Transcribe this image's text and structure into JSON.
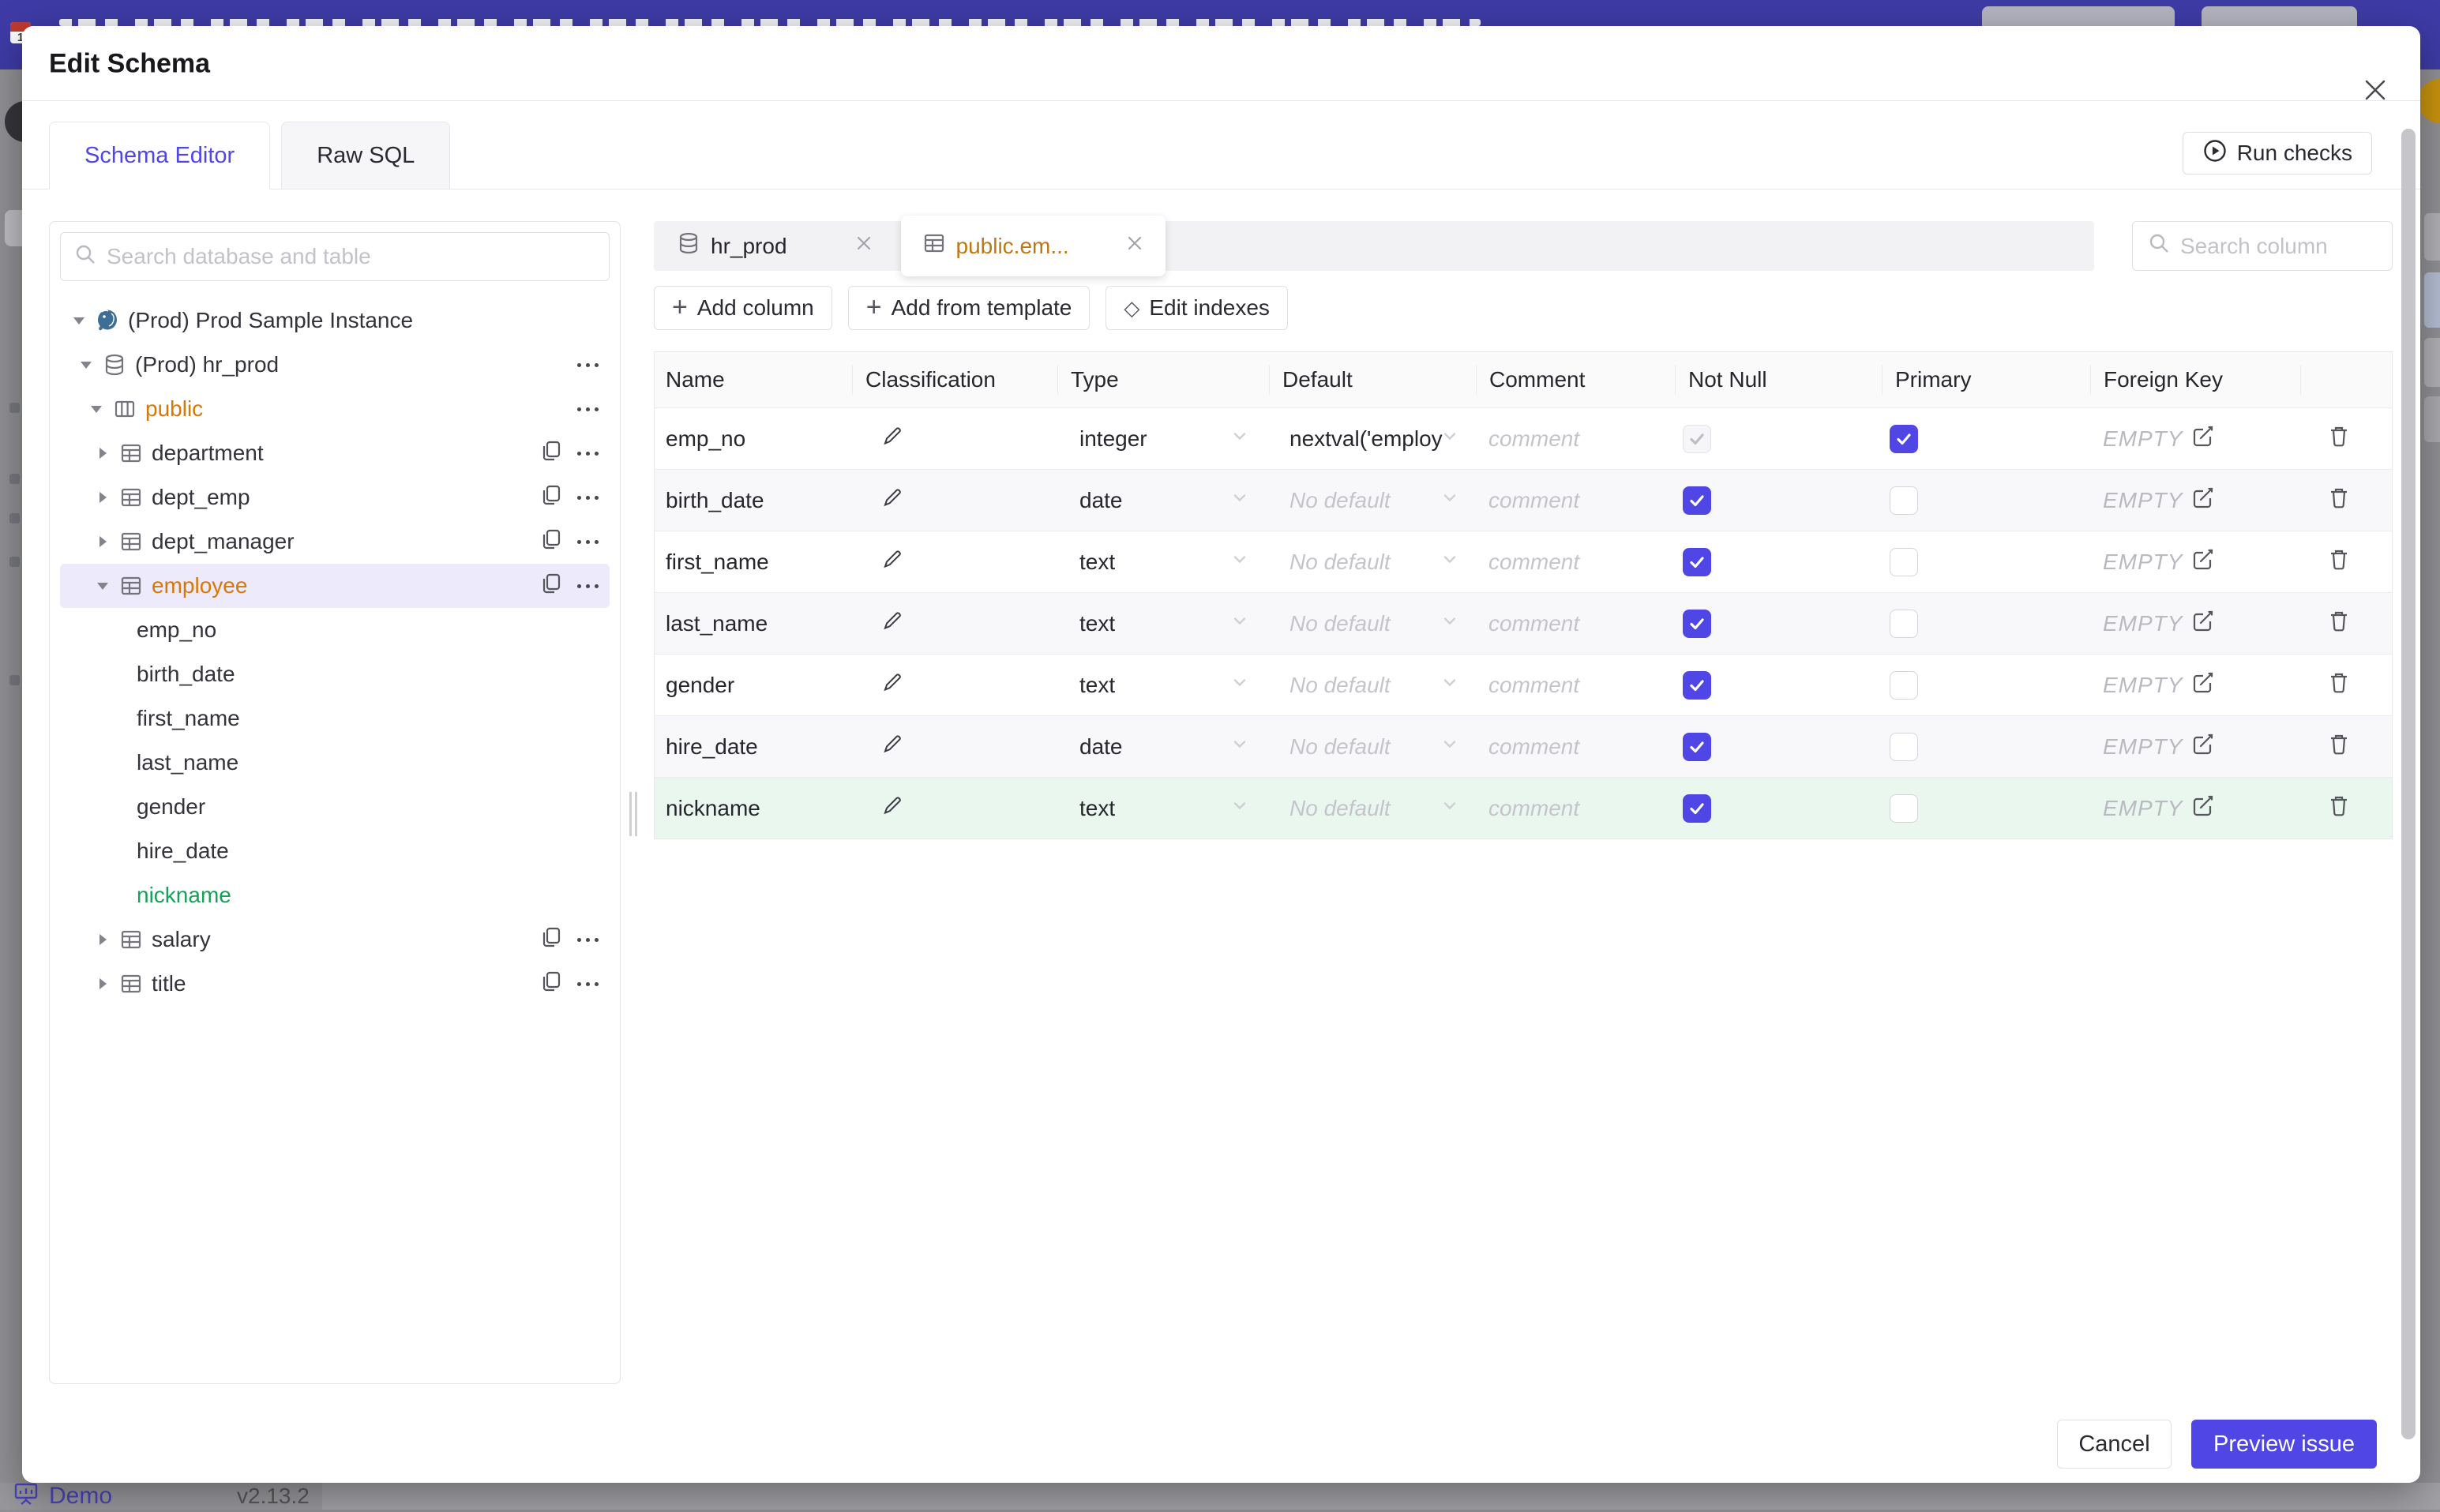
{
  "chrome": {
    "statusbar": {
      "demo_label": "Demo",
      "version": "v2.13.2"
    }
  },
  "dialog": {
    "title": "Edit Schema",
    "run_checks_label": "Run checks",
    "cancel_label": "Cancel",
    "submit_label": "Preview issue",
    "tabs": [
      {
        "label": "Schema Editor",
        "active": true
      },
      {
        "label": "Raw SQL",
        "active": false
      }
    ]
  },
  "sidebar": {
    "search_placeholder": "Search database and table",
    "tree": [
      {
        "label": "(Prod) Prod Sample Instance",
        "level": 0,
        "caret": "down",
        "icon": "postgresql",
        "actions": []
      },
      {
        "label": "(Prod) hr_prod",
        "level": 1,
        "caret": "down",
        "icon": "database",
        "actions": [
          "more"
        ]
      },
      {
        "label": "public",
        "level": 2,
        "caret": "down",
        "icon": "schema",
        "state": "modified",
        "actions": [
          "more"
        ]
      },
      {
        "label": "department",
        "level": 3,
        "caret": "right",
        "icon": "table",
        "actions": [
          "copy",
          "more"
        ]
      },
      {
        "label": "dept_emp",
        "level": 3,
        "caret": "right",
        "icon": "table",
        "actions": [
          "copy",
          "more"
        ]
      },
      {
        "label": "dept_manager",
        "level": 3,
        "caret": "right",
        "icon": "table",
        "actions": [
          "copy",
          "more"
        ]
      },
      {
        "label": "employee",
        "level": 3,
        "caret": "down",
        "icon": "table",
        "state": "modified",
        "selected": true,
        "actions": [
          "copy",
          "more"
        ]
      },
      {
        "label": "emp_no",
        "level": "column"
      },
      {
        "label": "birth_date",
        "level": "column"
      },
      {
        "label": "first_name",
        "level": "column"
      },
      {
        "label": "last_name",
        "level": "column"
      },
      {
        "label": "gender",
        "level": "column"
      },
      {
        "label": "hire_date",
        "level": "column"
      },
      {
        "label": "nickname",
        "level": "column",
        "state": "new"
      },
      {
        "label": "salary",
        "level": 3,
        "caret": "right",
        "icon": "table",
        "actions": [
          "copy",
          "more"
        ]
      },
      {
        "label": "title",
        "level": 3,
        "caret": "right",
        "icon": "table",
        "actions": [
          "copy",
          "more"
        ]
      }
    ]
  },
  "editor": {
    "open_tabs": [
      {
        "label": "hr_prod",
        "icon": "database",
        "active": false
      },
      {
        "label": "public.em...",
        "icon": "table",
        "active": true,
        "state": "modified"
      }
    ],
    "column_search_placeholder": "Search column",
    "toolbar": {
      "add_column": "Add column",
      "add_from_template": "Add from template",
      "edit_indexes": "Edit indexes"
    },
    "grid": {
      "headers": [
        "Name",
        "Classification",
        "Type",
        "Default",
        "Comment",
        "Not Null",
        "Primary",
        "Foreign Key"
      ],
      "placeholders": {
        "comment": "comment",
        "no_default": "No default",
        "foreign_key": "EMPTY"
      },
      "rows": [
        {
          "name": "emp_no",
          "type": "integer",
          "default_value": "nextval('employ",
          "has_default": true,
          "not_null": "disabled-checked",
          "primary": "checked",
          "state": "normal"
        },
        {
          "name": "birth_date",
          "type": "date",
          "default_value": "",
          "has_default": false,
          "not_null": "checked",
          "primary": "unchecked",
          "state": "normal"
        },
        {
          "name": "first_name",
          "type": "text",
          "default_value": "",
          "has_default": false,
          "not_null": "checked",
          "primary": "unchecked",
          "state": "normal"
        },
        {
          "name": "last_name",
          "type": "text",
          "default_value": "",
          "has_default": false,
          "not_null": "checked",
          "primary": "unchecked",
          "state": "normal"
        },
        {
          "name": "gender",
          "type": "text",
          "default_value": "",
          "has_default": false,
          "not_null": "checked",
          "primary": "unchecked",
          "state": "normal"
        },
        {
          "name": "hire_date",
          "type": "date",
          "default_value": "",
          "has_default": false,
          "not_null": "checked",
          "primary": "unchecked",
          "state": "normal"
        },
        {
          "name": "nickname",
          "type": "text",
          "default_value": "",
          "has_default": false,
          "not_null": "checked",
          "primary": "unchecked",
          "state": "new"
        }
      ]
    }
  },
  "colors": {
    "accent": "#4f46e5",
    "modified_orange": "#d97706",
    "new_green": "#18a058"
  }
}
